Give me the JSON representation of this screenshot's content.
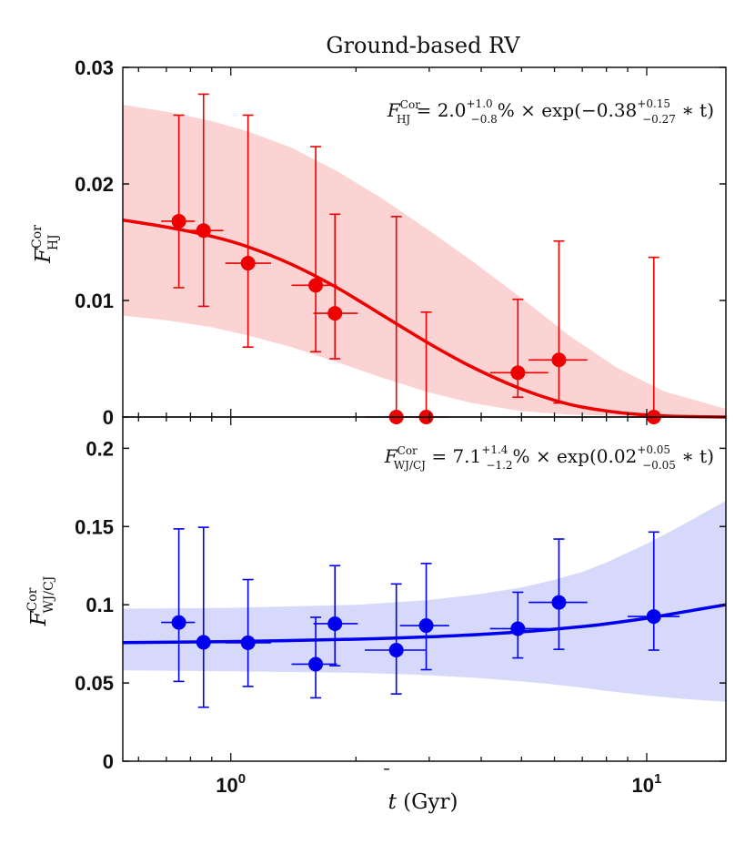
{
  "chart_data": [
    {
      "type": "scatter",
      "panel": "top",
      "title": "Ground-based RV",
      "ylabel_main": "F",
      "ylabel_sup": "Cor",
      "ylabel_sub": "HJ",
      "xscale": "log",
      "xlim": [
        0.55,
        15.5
      ],
      "ylim": [
        0,
        0.03
      ],
      "yticks": [
        "0",
        "0.01",
        "0.02",
        "0.03"
      ],
      "ytick_values": [
        0,
        0.01,
        0.02,
        0.03
      ],
      "color": "#ee0000",
      "band_color": "#fbd3d3",
      "annotation": {
        "lhs_main": "F",
        "lhs_sup": "Cor",
        "lhs_sub": "HJ",
        "eq": " = 2.0",
        "v1_up": "+1.0",
        "v1_dn": "−0.8",
        "mid": "% × exp(−0.38",
        "v2_up": "+0.15",
        "v2_dn": "−0.27",
        "end": " ∗ t)"
      },
      "model": {
        "description": "fit curve with 1-sigma band",
        "x": [
          0.55,
          0.7,
          0.9,
          1.1,
          1.4,
          1.8,
          2.3,
          3.0,
          3.8,
          5.0,
          6.5,
          8.5,
          11,
          15.5
        ],
        "y": [
          0.0169,
          0.0163,
          0.0155,
          0.0146,
          0.0131,
          0.0111,
          0.0088,
          0.0063,
          0.0043,
          0.0024,
          0.0011,
          0.0004,
          0.0001,
          0.0
        ],
        "upper": [
          0.0268,
          0.0262,
          0.0254,
          0.0245,
          0.0231,
          0.0211,
          0.0188,
          0.016,
          0.0134,
          0.0102,
          0.007,
          0.0042,
          0.0022,
          0.0007
        ],
        "lower": [
          0.0087,
          0.0083,
          0.0077,
          0.007,
          0.006,
          0.0047,
          0.0034,
          0.0021,
          0.0012,
          0.0005,
          0.0002,
          0.0001,
          0.0,
          0.0
        ]
      },
      "points": [
        {
          "x": 0.75,
          "y": 0.0168,
          "xlo": 0.68,
          "xhi": 0.82,
          "ylo": 0.0111,
          "yhi": 0.0259
        },
        {
          "x": 0.86,
          "y": 0.016,
          "xlo": 0.78,
          "xhi": 0.96,
          "ylo": 0.0095,
          "yhi": 0.0277
        },
        {
          "x": 1.1,
          "y": 0.0132,
          "xlo": 0.97,
          "xhi": 1.25,
          "ylo": 0.006,
          "yhi": 0.0259
        },
        {
          "x": 1.6,
          "y": 0.0113,
          "xlo": 1.4,
          "xhi": 1.8,
          "ylo": 0.0056,
          "yhi": 0.0232
        },
        {
          "x": 1.78,
          "y": 0.0089,
          "xlo": 1.58,
          "xhi": 2.02,
          "ylo": 0.005,
          "yhi": 0.0174
        },
        {
          "x": 2.5,
          "y": 0.0,
          "xlo": 2.1,
          "xhi": 2.95,
          "ylo": 0.0,
          "yhi": 0.0172
        },
        {
          "x": 2.95,
          "y": 0.0,
          "xlo": 2.55,
          "xhi": 3.35,
          "ylo": 0.0,
          "yhi": 0.009
        },
        {
          "x": 4.9,
          "y": 0.0038,
          "xlo": 4.2,
          "xhi": 5.8,
          "ylo": 0.0017,
          "yhi": 0.0101
        },
        {
          "x": 6.15,
          "y": 0.0049,
          "xlo": 5.2,
          "xhi": 7.2,
          "ylo": 0.0012,
          "yhi": 0.0151
        },
        {
          "x": 10.4,
          "y": 0.0,
          "xlo": 9.0,
          "xhi": 12.0,
          "ylo": 0.0,
          "yhi": 0.0137
        }
      ]
    },
    {
      "type": "scatter",
      "panel": "bottom",
      "xlabel_var": "t",
      "xlabel_unit": " (Gyr)",
      "ylabel_main": "F",
      "ylabel_sup": "Cor",
      "ylabel_sub": "WJ/CJ",
      "xscale": "log",
      "xlim": [
        0.55,
        15.5
      ],
      "ylim": [
        0,
        0.22
      ],
      "yticks": [
        "0",
        "0.05",
        "0.1",
        "0.15",
        "0.2"
      ],
      "ytick_values": [
        0,
        0.05,
        0.1,
        0.15,
        0.2
      ],
      "xticks_base": [
        "10",
        "10"
      ],
      "xticks_exp": [
        "0",
        "1"
      ],
      "xtick_values": [
        1,
        10
      ],
      "color": "#0000ee",
      "band_color": "#d6d9fa",
      "annotation": {
        "lhs_main": "F",
        "lhs_sup": "Cor",
        "lhs_sub": "WJ/CJ",
        "eq": " = 7.1",
        "v1_up": "+1.4",
        "v1_dn": "−1.2",
        "mid": "% × exp(0.02",
        "v2_up": "+0.05",
        "v2_dn": "−0.05",
        "end": " ∗ t)"
      },
      "model": {
        "description": "fit curve with 1-sigma band",
        "x": [
          0.55,
          1,
          2,
          3,
          4,
          5,
          6,
          7,
          8,
          10,
          12,
          15.5
        ],
        "y": [
          0.0758,
          0.0765,
          0.078,
          0.0795,
          0.0811,
          0.0827,
          0.0844,
          0.0861,
          0.0878,
          0.0914,
          0.095,
          0.1
        ],
        "upper": [
          0.0975,
          0.098,
          0.1,
          0.103,
          0.107,
          0.111,
          0.116,
          0.121,
          0.127,
          0.139,
          0.15,
          0.1665
        ],
        "lower": [
          0.058,
          0.0575,
          0.0565,
          0.055,
          0.053,
          0.051,
          0.049,
          0.047,
          0.045,
          0.042,
          0.04,
          0.038
        ]
      },
      "points": [
        {
          "x": 0.75,
          "y": 0.0887,
          "xlo": 0.68,
          "xhi": 0.82,
          "ylo": 0.051,
          "yhi": 0.1485
        },
        {
          "x": 0.86,
          "y": 0.076,
          "xlo": 0.78,
          "xhi": 0.96,
          "ylo": 0.0345,
          "yhi": 0.1495
        },
        {
          "x": 1.1,
          "y": 0.0757,
          "xlo": 0.97,
          "xhi": 1.25,
          "ylo": 0.0478,
          "yhi": 0.1161
        },
        {
          "x": 1.6,
          "y": 0.062,
          "xlo": 1.4,
          "xhi": 1.8,
          "ylo": 0.0405,
          "yhi": 0.092
        },
        {
          "x": 1.78,
          "y": 0.0879,
          "xlo": 1.58,
          "xhi": 2.02,
          "ylo": 0.061,
          "yhi": 0.125
        },
        {
          "x": 2.5,
          "y": 0.071,
          "xlo": 2.1,
          "xhi": 2.95,
          "ylo": 0.043,
          "yhi": 0.1133
        },
        {
          "x": 2.95,
          "y": 0.0867,
          "xlo": 2.55,
          "xhi": 3.35,
          "ylo": 0.0585,
          "yhi": 0.1264
        },
        {
          "x": 4.9,
          "y": 0.0847,
          "xlo": 4.2,
          "xhi": 5.8,
          "ylo": 0.066,
          "yhi": 0.108
        },
        {
          "x": 6.15,
          "y": 0.1015,
          "xlo": 5.2,
          "xhi": 7.2,
          "ylo": 0.0715,
          "yhi": 0.142
        },
        {
          "x": 10.4,
          "y": 0.0925,
          "xlo": 9.0,
          "xhi": 12.0,
          "ylo": 0.071,
          "yhi": 0.1465
        }
      ]
    }
  ]
}
